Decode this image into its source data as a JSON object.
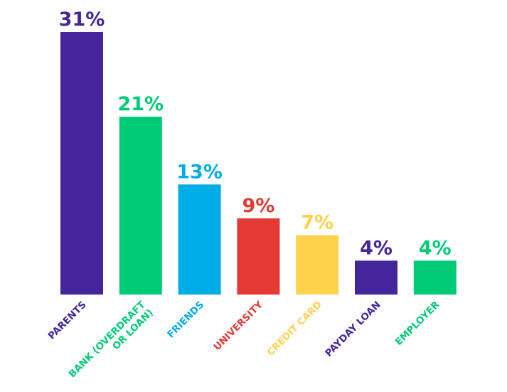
{
  "chart_data": {
    "type": "bar",
    "categories": [
      "PARENTS",
      "BANK (OVERDRAFT OR LOAN)",
      "FRIENDS",
      "UNIVERSITY",
      "CREDIT CARD",
      "PAYDAY LOAN",
      "EMPLOYER"
    ],
    "category_lines": [
      [
        "PARENTS"
      ],
      [
        "BANK (OVERDRAFT",
        "OR LOAN)"
      ],
      [
        "FRIENDS"
      ],
      [
        "UNIVERSITY"
      ],
      [
        "CREDIT CARD"
      ],
      [
        "PAYDAY LOAN"
      ],
      [
        "EMPLOYER"
      ]
    ],
    "values": [
      31,
      21,
      13,
      9,
      7,
      4,
      4
    ],
    "value_labels": [
      "31%",
      "21%",
      "13%",
      "9%",
      "7%",
      "4%",
      "4%"
    ],
    "colors": [
      "#45259b",
      "#00cc77",
      "#00ade6",
      "#e53935",
      "#ffd14d",
      "#45259b",
      "#00cc77"
    ],
    "title": "",
    "xlabel": "",
    "ylabel": "",
    "ylim": [
      0,
      31
    ],
    "grid": false,
    "legend": "none"
  }
}
